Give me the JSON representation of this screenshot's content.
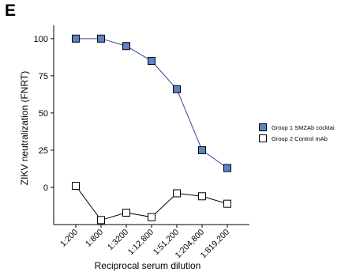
{
  "panel_label": "E",
  "chart_data": {
    "type": "line",
    "categories": [
      "1:200",
      "1:800",
      "1:3200",
      "1:12,800",
      "1:51,200",
      "1:204,800",
      "1:819,200"
    ],
    "series": [
      {
        "name": "Group 1 SMZAb cocktai",
        "values": [
          100,
          100,
          95,
          85,
          66,
          25,
          13
        ],
        "color": "#2e4a9e",
        "marker_fill": "#5b84c4",
        "marker": "square"
      },
      {
        "name": "Group 2 Control mAb",
        "values": [
          1,
          -22,
          -17,
          -20,
          -4,
          -6,
          -11
        ],
        "color": "#000000",
        "marker_fill": "#ffffff",
        "marker": "square"
      }
    ],
    "xlabel": "Reciprocal serum dilution",
    "ylabel": "ZIKV neutralization (FNRT)",
    "ylim": [
      -25,
      110
    ],
    "yticks": [
      0,
      25,
      50,
      75,
      100
    ],
    "grid": false,
    "legend_position": "right"
  }
}
